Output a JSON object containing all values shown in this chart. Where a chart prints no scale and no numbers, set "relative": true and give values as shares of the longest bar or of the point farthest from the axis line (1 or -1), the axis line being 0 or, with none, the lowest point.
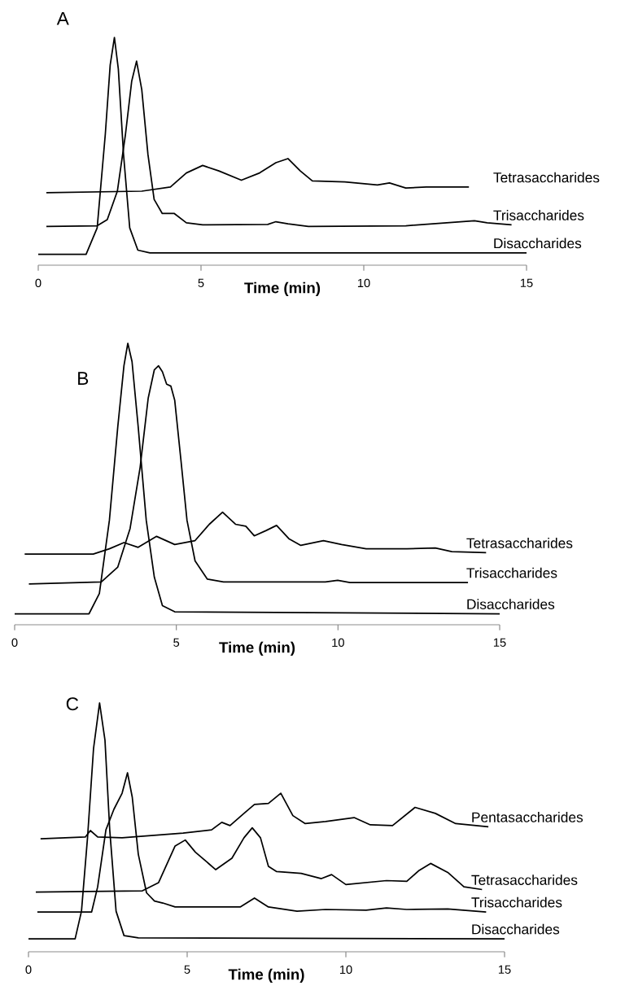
{
  "chart_data": [
    {
      "type": "line",
      "title": "A",
      "xlabel": "**Time (min)**",
      "xlim": [
        0,
        15
      ],
      "xticks": [
        0,
        5,
        10,
        15
      ],
      "relative": true,
      "series": [
        {
          "name": "Tetrasaccharides",
          "color": "#000000",
          "x": [
            0.25,
            3.18,
            4.06,
            4.55,
            5.05,
            5.55,
            6.24,
            6.8,
            7.3,
            7.67,
            8.05,
            8.42,
            9.42,
            10.42,
            10.79,
            11.29,
            11.92,
            13.23
          ],
          "values": [
            0.318,
            0.325,
            0.343,
            0.405,
            0.438,
            0.414,
            0.373,
            0.405,
            0.45,
            0.468,
            0.414,
            0.37,
            0.366,
            0.352,
            0.361,
            0.339,
            0.343,
            0.343
          ]
        },
        {
          "name": "Trisaccharides",
          "color": "#000000",
          "x": [
            0.25,
            1.81,
            2.12,
            2.43,
            2.68,
            2.87,
            3.02,
            3.18,
            3.37,
            3.56,
            3.81,
            4.18,
            4.55,
            5.05,
            7.05,
            7.3,
            7.67,
            8.3,
            11.29,
            13.4,
            13.79,
            14.54
          ],
          "values": [
            0.17,
            0.173,
            0.2,
            0.325,
            0.575,
            0.807,
            0.896,
            0.771,
            0.486,
            0.289,
            0.227,
            0.227,
            0.186,
            0.177,
            0.179,
            0.191,
            0.182,
            0.17,
            0.173,
            0.195,
            0.186,
            0.177
          ]
        },
        {
          "name": "Disaccharides",
          "color": "#000000",
          "x": [
            0,
            1.47,
            1.81,
            2.06,
            2.21,
            2.34,
            2.46,
            2.62,
            2.81,
            3.06,
            3.43,
            15
          ],
          "values": [
            0.048,
            0.048,
            0.164,
            0.575,
            0.879,
            1.0,
            0.861,
            0.486,
            0.164,
            0.066,
            0.054,
            0.054
          ]
        }
      ]
    },
    {
      "type": "line",
      "title": "B",
      "xlabel": "**Time (min)**",
      "xlim": [
        0,
        15
      ],
      "xticks": [
        0,
        5,
        10,
        15
      ],
      "relative": true,
      "series": [
        {
          "name": "Tetrasaccharides",
          "color": "#000000",
          "x": [
            0.31,
            2.43,
            2.93,
            3.38,
            3.82,
            4.39,
            4.95,
            5.58,
            6.02,
            6.43,
            6.83,
            7.15,
            7.41,
            7.78,
            8.1,
            8.48,
            8.85,
            9.55,
            10.11,
            10.87,
            12.13,
            13.01,
            13.52,
            14.58
          ],
          "values": [
            0.251,
            0.251,
            0.27,
            0.292,
            0.275,
            0.314,
            0.285,
            0.299,
            0.357,
            0.4,
            0.357,
            0.35,
            0.316,
            0.335,
            0.353,
            0.306,
            0.282,
            0.299,
            0.285,
            0.27,
            0.27,
            0.273,
            0.26,
            0.256
          ]
        },
        {
          "name": "Trisaccharides",
          "color": "#000000",
          "x": [
            0.44,
            2.68,
            3.19,
            3.57,
            3.88,
            4.13,
            4.32,
            4.45,
            4.57,
            4.7,
            4.83,
            4.95,
            5.14,
            5.33,
            5.58,
            5.96,
            6.46,
            9.61,
            9.99,
            10.37,
            14.02
          ],
          "values": [
            0.145,
            0.152,
            0.205,
            0.342,
            0.559,
            0.805,
            0.906,
            0.92,
            0.899,
            0.855,
            0.848,
            0.798,
            0.588,
            0.371,
            0.227,
            0.162,
            0.152,
            0.152,
            0.158,
            0.15,
            0.15
          ]
        },
        {
          "name": "Disaccharides",
          "color": "#000000",
          "x": [
            0,
            2.3,
            2.62,
            2.93,
            3.19,
            3.38,
            3.5,
            3.63,
            3.82,
            4.07,
            4.32,
            4.57,
            4.95,
            15
          ],
          "values": [
            0.039,
            0.039,
            0.111,
            0.371,
            0.704,
            0.92,
            1.0,
            0.935,
            0.704,
            0.371,
            0.169,
            0.068,
            0.046,
            0.039
          ]
        }
      ]
    },
    {
      "type": "line",
      "title": "C",
      "xlabel": "**Time (min)**",
      "xlim": [
        0,
        15
      ],
      "xticks": [
        0,
        5,
        10,
        15
      ],
      "relative": true,
      "series": [
        {
          "name": "Pentasaccharides",
          "color": "#000000",
          "x": [
            0.38,
            1.79,
            1.95,
            2.18,
            2.95,
            4.87,
            5.77,
            6.09,
            6.35,
            6.79,
            7.12,
            7.56,
            7.95,
            8.33,
            8.72,
            9.36,
            10.26,
            10.77,
            11.47,
            12.18,
            12.82,
            13.46,
            14.49
          ],
          "values": [
            0.454,
            0.461,
            0.487,
            0.461,
            0.458,
            0.477,
            0.49,
            0.52,
            0.507,
            0.556,
            0.592,
            0.596,
            0.637,
            0.547,
            0.515,
            0.523,
            0.539,
            0.51,
            0.507,
            0.58,
            0.556,
            0.515,
            0.502
          ]
        },
        {
          "name": "Tetrasaccharides",
          "color": "#000000",
          "x": [
            0.23,
            3.59,
            4.1,
            4.62,
            4.94,
            5.26,
            5.9,
            6.41,
            6.79,
            7.05,
            7.31,
            7.56,
            7.82,
            8.59,
            9.23,
            9.55,
            10.0,
            11.28,
            11.92,
            12.31,
            12.67,
            13.21,
            13.72,
            14.29
          ],
          "values": [
            0.24,
            0.245,
            0.278,
            0.425,
            0.449,
            0.4,
            0.33,
            0.376,
            0.458,
            0.498,
            0.458,
            0.343,
            0.322,
            0.315,
            0.294,
            0.31,
            0.27,
            0.286,
            0.283,
            0.327,
            0.355,
            0.319,
            0.261,
            0.25
          ]
        },
        {
          "name": "Trisaccharides",
          "color": "#000000",
          "x": [
            0.28,
            1.99,
            2.18,
            2.44,
            2.69,
            2.95,
            3.12,
            3.27,
            3.46,
            3.72,
            3.97,
            4.23,
            4.62,
            6.67,
            7.12,
            7.56,
            8.46,
            9.36,
            10.64,
            11.28,
            11.92,
            13.21,
            14.42
          ],
          "values": [
            0.16,
            0.16,
            0.261,
            0.49,
            0.572,
            0.637,
            0.719,
            0.621,
            0.392,
            0.237,
            0.204,
            0.196,
            0.18,
            0.18,
            0.216,
            0.18,
            0.163,
            0.17,
            0.167,
            0.176,
            0.17,
            0.172,
            0.16
          ]
        },
        {
          "name": "Disaccharides",
          "color": "#000000",
          "x": [
            0,
            1.47,
            1.67,
            1.86,
            2.05,
            2.24,
            2.41,
            2.56,
            2.76,
            3.01,
            3.46,
            15
          ],
          "values": [
            0.052,
            0.052,
            0.163,
            0.458,
            0.817,
            1.0,
            0.85,
            0.49,
            0.163,
            0.065,
            0.056,
            0.052
          ]
        }
      ]
    }
  ]
}
